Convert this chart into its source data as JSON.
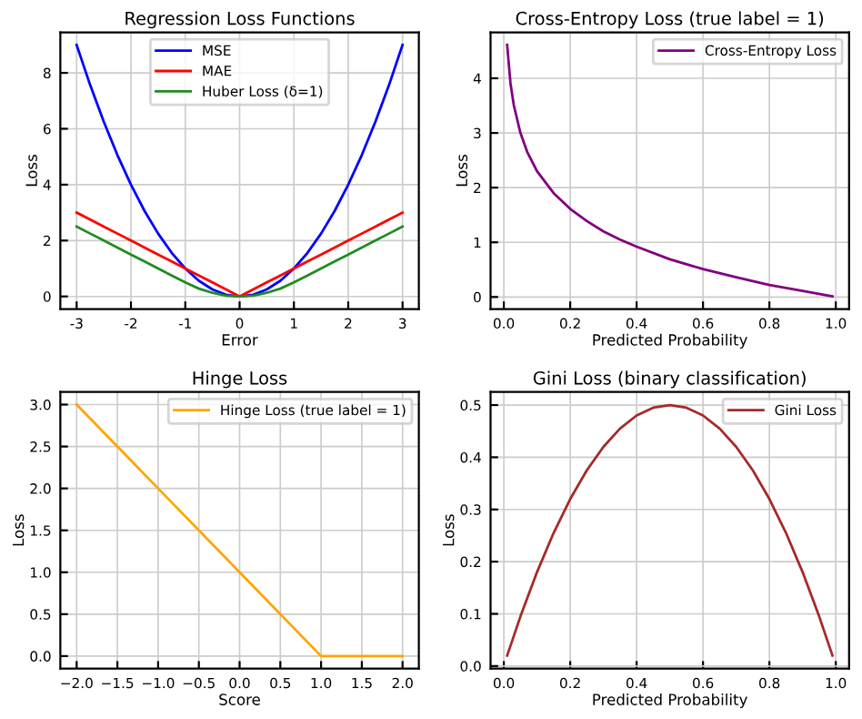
{
  "chart_data": [
    {
      "type": "line",
      "title": "Regression Loss Functions",
      "xlabel": "Error",
      "ylabel": "Loss",
      "x": [
        -3,
        -2.75,
        -2.5,
        -2.25,
        -2,
        -1.75,
        -1.5,
        -1.25,
        -1,
        -0.75,
        -0.5,
        -0.25,
        0,
        0.25,
        0.5,
        0.75,
        1,
        1.25,
        1.5,
        1.75,
        2,
        2.25,
        2.5,
        2.75,
        3
      ],
      "series": [
        {
          "name": "MSE",
          "color": "#0000ff",
          "values": [
            9,
            7.56,
            6.25,
            5.06,
            4,
            3.06,
            2.25,
            1.56,
            1,
            0.56,
            0.25,
            0.06,
            0,
            0.06,
            0.25,
            0.56,
            1,
            1.56,
            2.25,
            3.06,
            4,
            5.06,
            6.25,
            7.56,
            9
          ]
        },
        {
          "name": "MAE",
          "color": "#ff0000",
          "values": [
            3,
            2.75,
            2.5,
            2.25,
            2,
            1.75,
            1.5,
            1.25,
            1,
            0.75,
            0.5,
            0.25,
            0,
            0.25,
            0.5,
            0.75,
            1,
            1.25,
            1.5,
            1.75,
            2,
            2.25,
            2.5,
            2.75,
            3
          ]
        },
        {
          "name": "Huber Loss (δ=1)",
          "color": "#228b22",
          "values": [
            2.5,
            2.25,
            2,
            1.75,
            1.5,
            1.25,
            1,
            0.75,
            0.5,
            0.28,
            0.13,
            0.03,
            0,
            0.03,
            0.13,
            0.28,
            0.5,
            0.75,
            1,
            1.25,
            1.5,
            1.75,
            2,
            2.25,
            2.5
          ]
        }
      ],
      "xlim": [
        -3.3,
        3.3
      ],
      "ylim": [
        -0.45,
        9.45
      ],
      "xticks": [
        -3,
        -2,
        -1,
        0,
        1,
        2,
        3
      ],
      "yticks": [
        0,
        2,
        4,
        6,
        8
      ],
      "grid": true,
      "legend": "top"
    },
    {
      "type": "line",
      "title": "Cross-Entropy Loss (true label = 1)",
      "xlabel": "Predicted Probability",
      "ylabel": "Loss",
      "x": [
        0.01,
        0.02,
        0.03,
        0.05,
        0.07,
        0.1,
        0.15,
        0.2,
        0.25,
        0.3,
        0.35,
        0.4,
        0.5,
        0.6,
        0.7,
        0.8,
        0.9,
        0.99
      ],
      "series": [
        {
          "name": "Cross-Entropy Loss",
          "color": "#800080",
          "values": [
            4.61,
            3.91,
            3.51,
            3.0,
            2.66,
            2.3,
            1.9,
            1.61,
            1.39,
            1.2,
            1.05,
            0.92,
            0.69,
            0.51,
            0.36,
            0.22,
            0.11,
            0.01
          ]
        }
      ],
      "xlim": [
        -0.04,
        1.04
      ],
      "ylim": [
        -0.22,
        4.84
      ],
      "xticks": [
        {
          "value": 0,
          "label": "0.0"
        },
        0.2,
        0.4,
        0.6,
        0.8,
        {
          "value": 1,
          "label": "1.0"
        }
      ],
      "yticks": [
        0,
        1,
        2,
        3,
        4
      ],
      "grid": true,
      "legend": "top right"
    },
    {
      "type": "line",
      "title": "Hinge Loss",
      "xlabel": "Score",
      "ylabel": "Loss",
      "x": [
        -2,
        -1,
        0,
        1,
        2
      ],
      "series": [
        {
          "name": "Hinge Loss (true label = 1)",
          "color": "#ffa500",
          "values": [
            3,
            2,
            1,
            0,
            0
          ]
        }
      ],
      "xlim": [
        -2.2,
        2.2
      ],
      "ylim": [
        -0.15,
        3.15
      ],
      "xticks": [
        {
          "value": -2,
          "label": "−2.0"
        },
        {
          "value": -1.5,
          "label": "−1.5"
        },
        {
          "value": -1,
          "label": "−1.0"
        },
        {
          "value": -0.5,
          "label": "−0.5"
        },
        {
          "value": 0,
          "label": "0.0"
        },
        0.5,
        {
          "value": 1,
          "label": "1.0"
        },
        1.5,
        {
          "value": 2,
          "label": "2.0"
        }
      ],
      "yticks": [
        {
          "value": 0,
          "label": "0.0"
        },
        0.5,
        {
          "value": 1,
          "label": "1.0"
        },
        1.5,
        {
          "value": 2,
          "label": "2.0"
        },
        2.5,
        {
          "value": 3,
          "label": "3.0"
        }
      ],
      "grid": true,
      "legend": "top right"
    },
    {
      "type": "line",
      "title": "Gini Loss (binary classification)",
      "xlabel": "Predicted Probability",
      "ylabel": "Loss",
      "x": [
        0.01,
        0.05,
        0.1,
        0.15,
        0.2,
        0.25,
        0.3,
        0.35,
        0.4,
        0.45,
        0.5,
        0.55,
        0.6,
        0.65,
        0.7,
        0.75,
        0.8,
        0.85,
        0.9,
        0.95,
        0.99
      ],
      "series": [
        {
          "name": "Gini Loss",
          "color": "#a52a2a",
          "values": [
            0.02,
            0.095,
            0.18,
            0.255,
            0.32,
            0.375,
            0.42,
            0.455,
            0.48,
            0.495,
            0.5,
            0.495,
            0.48,
            0.455,
            0.42,
            0.375,
            0.32,
            0.255,
            0.18,
            0.095,
            0.02
          ]
        }
      ],
      "xlim": [
        -0.04,
        1.04
      ],
      "ylim": [
        -0.005,
        0.525
      ],
      "xticks": [
        {
          "value": 0,
          "label": "0.0"
        },
        0.2,
        0.4,
        0.6,
        0.8,
        {
          "value": 1,
          "label": "1.0"
        }
      ],
      "yticks": [
        {
          "value": 0,
          "label": "0.0"
        },
        0.1,
        0.2,
        0.3,
        0.4,
        0.5
      ],
      "grid": true,
      "legend": "top right"
    }
  ]
}
